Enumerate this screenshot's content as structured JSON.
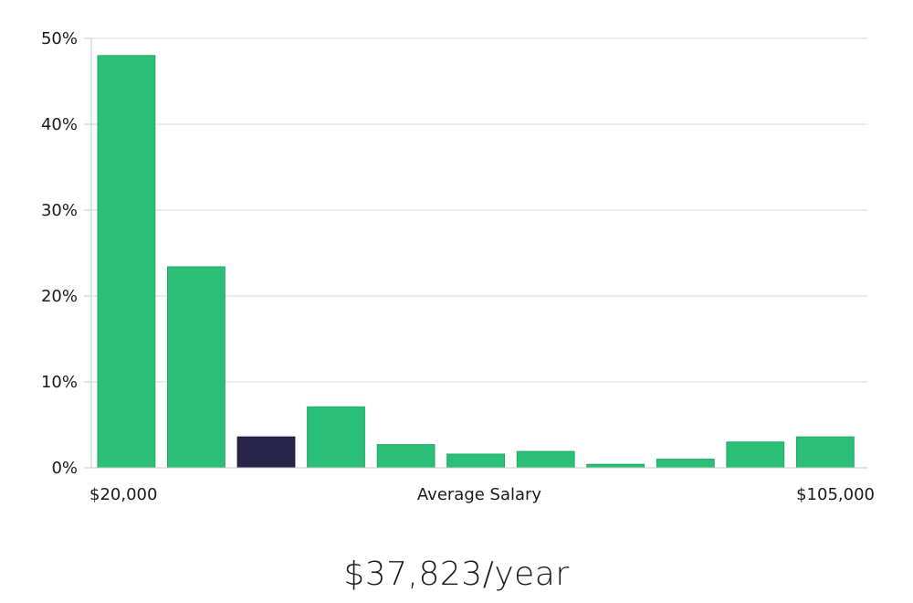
{
  "chart_data": {
    "type": "bar",
    "y_tick_labels": [
      "0%",
      "10%",
      "20%",
      "30%",
      "40%",
      "50%"
    ],
    "ylim": [
      0,
      50
    ],
    "x_axis": {
      "start_label": "$20,000",
      "center_label": "Average Salary",
      "end_label": "$105,000"
    },
    "values": [
      48.0,
      23.4,
      3.6,
      7.1,
      2.7,
      1.6,
      1.9,
      0.4,
      1.0,
      3.0,
      3.6
    ],
    "highlight_index": 2,
    "grid": true,
    "colors": {
      "bar": "#2bbf77",
      "bar_highlight": "#28244a"
    }
  },
  "summary": {
    "salary": "$37,823/year"
  }
}
